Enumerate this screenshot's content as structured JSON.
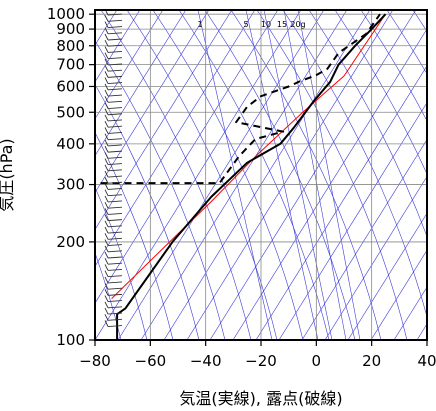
{
  "chart_data": {
    "type": "line",
    "title": "",
    "xlabel": "気温(実線), 露点(破線)",
    "ylabel": "気圧(hPa)",
    "xlim": [
      -80,
      40
    ],
    "ylim": [
      1030,
      100
    ],
    "y_scale": "log",
    "x_ticks": [
      -80,
      -60,
      -40,
      -20,
      0,
      20,
      40
    ],
    "x_tick_labels": [
      "−80",
      "−60",
      "−40",
      "−20",
      "0",
      "20",
      "40"
    ],
    "y_ticks": [
      100,
      200,
      300,
      400,
      500,
      600,
      700,
      800,
      900,
      1000
    ],
    "grid": true,
    "mixing_ratio_labels": [
      "1",
      "5",
      "10",
      "15",
      "20g"
    ],
    "series": [
      {
        "style": "solid",
        "color": "#ff0000",
        "points": [
          [
            -74,
            134
          ],
          [
            -53,
            200
          ],
          [
            -38,
            266
          ],
          [
            -22,
            366
          ],
          [
            -5,
            499
          ],
          [
            10,
            646
          ],
          [
            25,
            1000
          ]
        ]
      },
      {
        "style": "solid",
        "color": "#000000",
        "points": [
          [
            -72,
            100
          ],
          [
            -72,
            120
          ],
          [
            -69,
            125
          ],
          [
            -52,
            200
          ],
          [
            -38,
            275
          ],
          [
            -25,
            350
          ],
          [
            -13,
            400
          ],
          [
            -8,
            450
          ],
          [
            -1,
            540
          ],
          [
            5,
            620
          ],
          [
            8,
            700
          ],
          [
            14,
            800
          ],
          [
            20,
            900
          ],
          [
            25,
            1000
          ]
        ]
      },
      {
        "style": "dashed",
        "color": "#000000",
        "points": [
          [
            -78,
            303
          ],
          [
            -35,
            303
          ],
          [
            -28,
            366
          ],
          [
            -22,
            414
          ],
          [
            -12,
            436
          ],
          [
            -29,
            466
          ],
          [
            -25,
            520
          ],
          [
            -20,
            560
          ],
          [
            -10,
            600
          ],
          [
            -6,
            622
          ],
          [
            0,
            650
          ],
          [
            4,
            680
          ],
          [
            8,
            760
          ],
          [
            18,
            870
          ],
          [
            23,
            1000
          ]
        ]
      }
    ]
  }
}
